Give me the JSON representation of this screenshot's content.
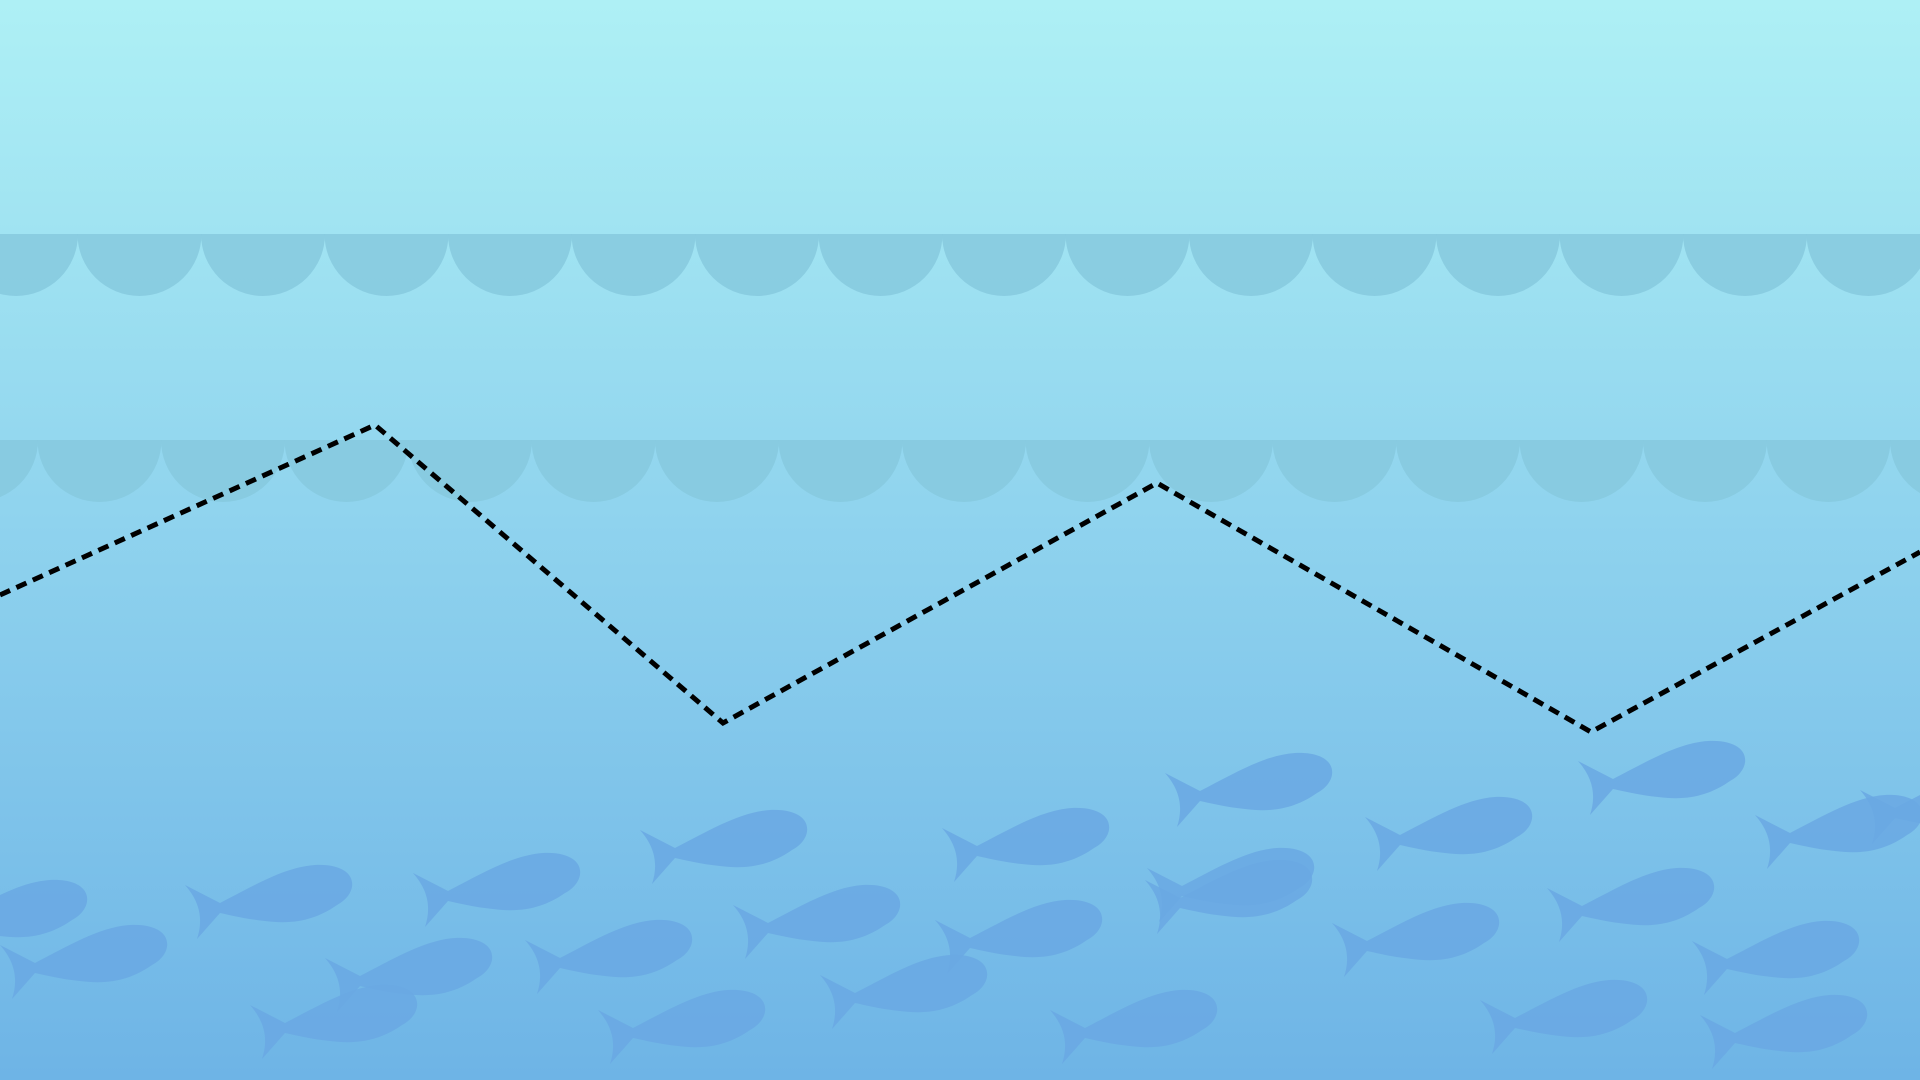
{
  "scene": {
    "kind": "underwater-background",
    "colors": {
      "water_top": "#aef0f5",
      "water_bottom": "#6eb4e6",
      "wave": "#86c9de",
      "fish": "#6aa8e3",
      "path_line": "#000000"
    },
    "wave_rows": 2,
    "fish_count": 26,
    "path_style": "dashed",
    "path_vertices": 6,
    "icons": [
      "wave-icon",
      "fish-icon"
    ]
  }
}
